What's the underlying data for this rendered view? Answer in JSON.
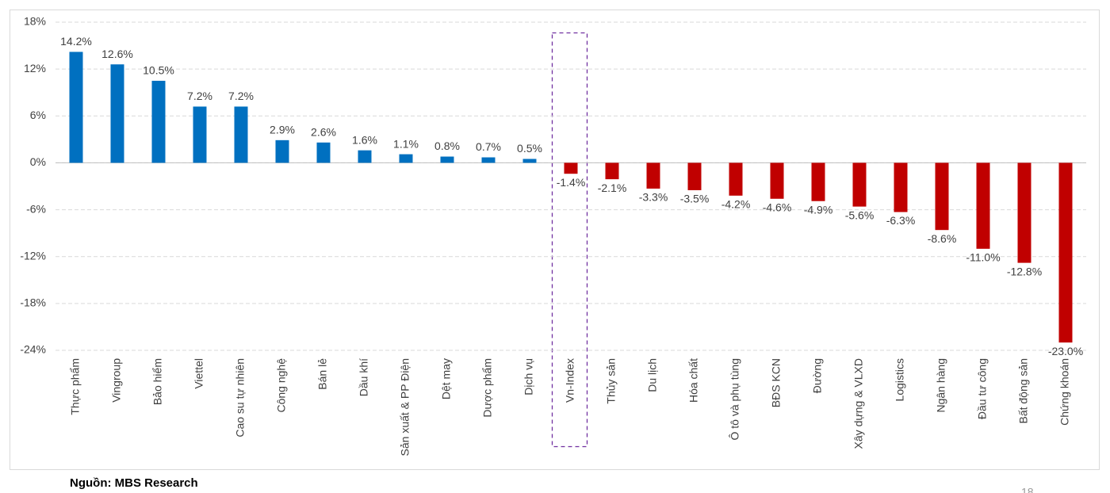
{
  "chart_data": {
    "type": "bar",
    "categories": [
      "Thực phẩm",
      "Vingroup",
      "Bảo hiểm",
      "Viettel",
      "Cao su tự nhiên",
      "Công nghệ",
      "Bán lẻ",
      "Dầu khí",
      "Sản xuất & PP Điện",
      "Dệt may",
      "Dược phẩm",
      "Dịch vụ",
      "Vn-Index",
      "Thủy sản",
      "Du lịch",
      "Hóa chất",
      "Ô tô và phụ tùng",
      "BĐS KCN",
      "Đường",
      "Xây dựng & VLXD",
      "Logistics",
      "Ngân hàng",
      "Đầu tư công",
      "Bất động sản",
      "Chứng khoán"
    ],
    "values": [
      14.2,
      12.6,
      10.5,
      7.2,
      7.2,
      2.9,
      2.6,
      1.6,
      1.1,
      0.8,
      0.7,
      0.5,
      -1.4,
      -2.1,
      -3.3,
      -3.5,
      -4.2,
      -4.6,
      -4.9,
      -5.6,
      -6.3,
      -8.6,
      -11.0,
      -12.8,
      -23.0
    ],
    "value_labels": [
      "14.2%",
      "12.6%",
      "10.5%",
      "7.2%",
      "7.2%",
      "2.9%",
      "2.6%",
      "1.6%",
      "1.1%",
      "0.8%",
      "0.7%",
      "0.5%",
      "-1.4%",
      "-2.1%",
      "-3.3%",
      "-3.5%",
      "-4.2%",
      "-4.6%",
      "-4.9%",
      "-5.6%",
      "-6.3%",
      "-8.6%",
      "-11.0%",
      "-12.8%",
      "-23.0%"
    ],
    "positive_color": "#0070c0",
    "negative_color": "#c00000",
    "ylim": [
      -24,
      18
    ],
    "yticks": [
      {
        "value": -24,
        "label": "-24%"
      },
      {
        "value": -18,
        "label": "-18%"
      },
      {
        "value": -12,
        "label": "-12%"
      },
      {
        "value": -6,
        "label": "-6%"
      },
      {
        "value": 0,
        "label": "0%"
      },
      {
        "value": 6,
        "label": "6%"
      },
      {
        "value": 12,
        "label": "12%"
      },
      {
        "value": 18,
        "label": "18%"
      }
    ],
    "grid": true
  },
  "source": "Nguồn: MBS Research",
  "page_number": "18"
}
